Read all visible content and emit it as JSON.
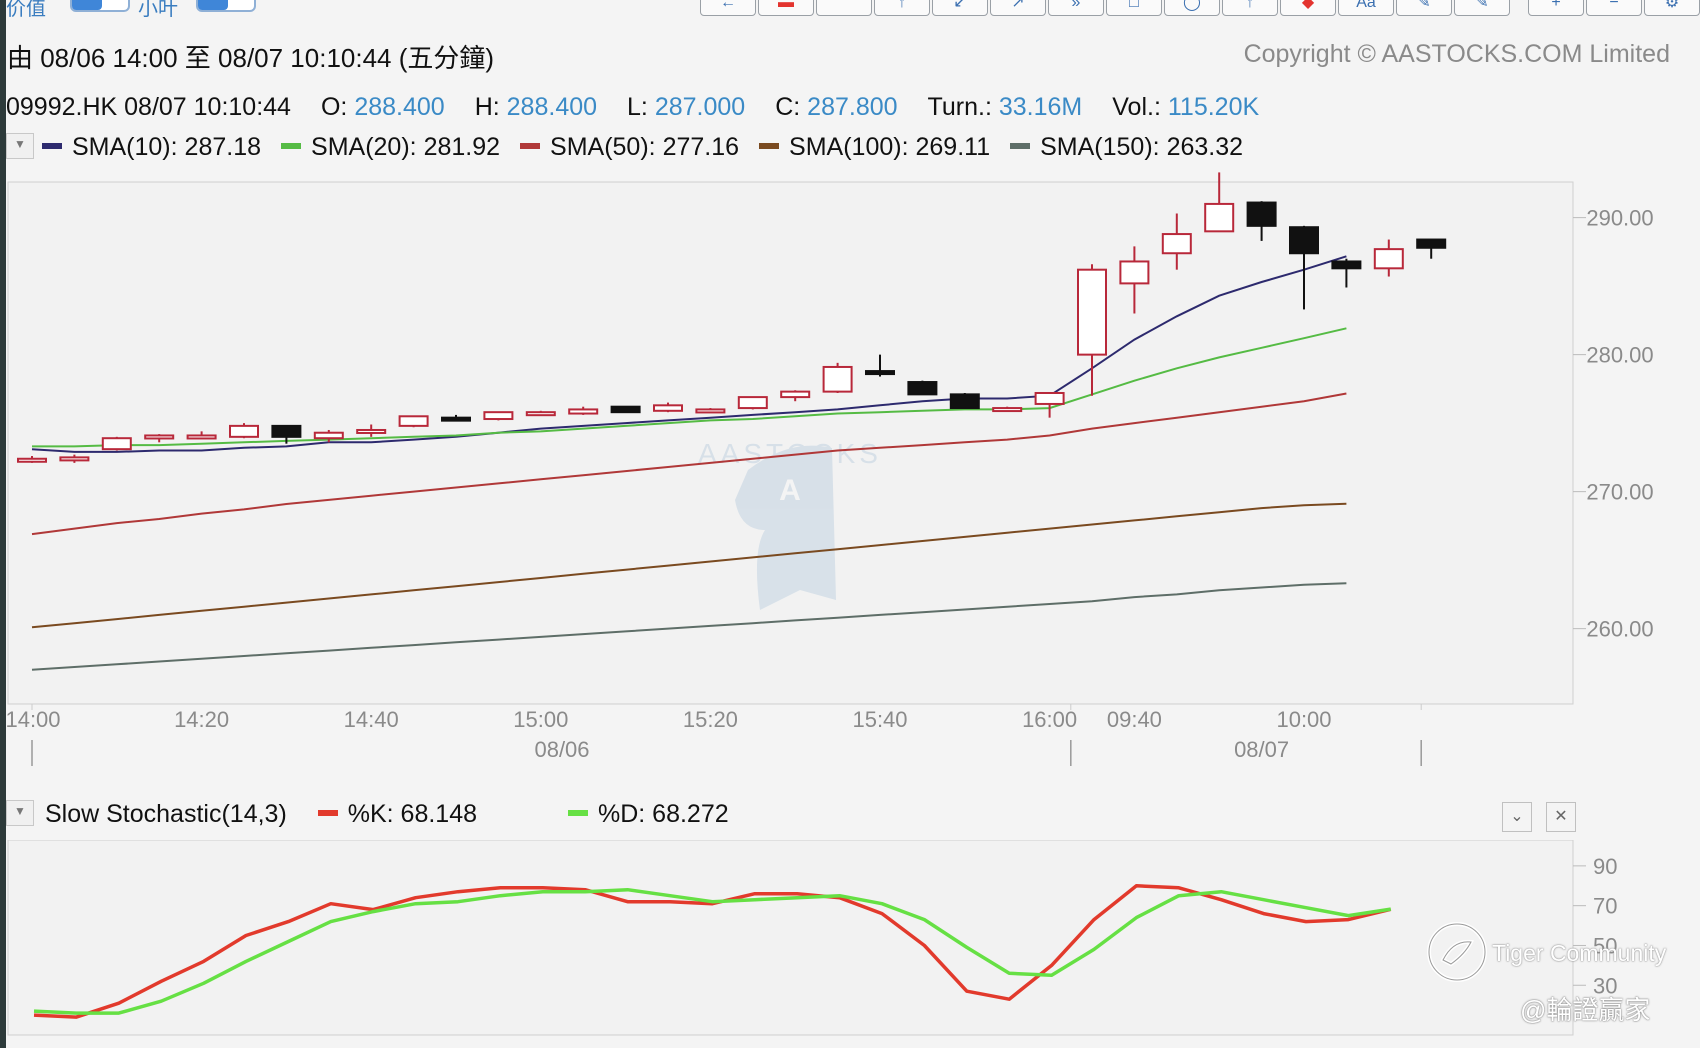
{
  "toolbar": {
    "left_labels": [
      "价值",
      "小叶"
    ],
    "buttons": [
      {
        "icon": "arrow-left-icon",
        "glyph": "←",
        "accent": false
      },
      {
        "icon": "red-bar-icon",
        "glyph": "▬",
        "accent": true
      },
      {
        "icon": "blank-icon",
        "glyph": "",
        "accent": false
      },
      {
        "icon": "arrow-up-icon",
        "glyph": "↑",
        "accent": false
      },
      {
        "icon": "arrow-down-left-icon",
        "glyph": "↙",
        "accent": false
      },
      {
        "icon": "arrow-right-up-icon",
        "glyph": "↗",
        "accent": false
      },
      {
        "icon": "double-arrow-icon",
        "glyph": "»",
        "accent": false
      },
      {
        "icon": "square-icon",
        "glyph": "□",
        "accent": false
      },
      {
        "icon": "circle-icon",
        "glyph": "◯",
        "accent": false
      },
      {
        "icon": "arrow-icon",
        "glyph": "↑",
        "accent": false
      },
      {
        "icon": "red-diamond-icon",
        "glyph": "◆",
        "accent": true
      },
      {
        "icon": "text-tool-icon",
        "glyph": "Aa",
        "accent": false
      },
      {
        "icon": "pen-icon",
        "glyph": "✎",
        "accent": false
      },
      {
        "icon": "pencil-icon",
        "glyph": "✎",
        "accent": false
      }
    ],
    "right_buttons": [
      {
        "icon": "zoom-in-icon",
        "glyph": "+"
      },
      {
        "icon": "zoom-out-icon",
        "glyph": "−"
      },
      {
        "icon": "settings-icon",
        "glyph": "⚙"
      }
    ]
  },
  "header": {
    "title": "由 08/06 14:00 至 08/07 10:10:44 (五分鐘)",
    "copyright": "Copyright © AASTOCKS.COM Limited"
  },
  "quote": {
    "symbol_time": "09992.HK 08/07 10:10:44",
    "o_label": "O:",
    "o_value": "288.400",
    "h_label": "H:",
    "h_value": "288.400",
    "l_label": "L:",
    "l_value": "287.000",
    "c_label": "C:",
    "c_value": "287.800",
    "turn_label": "Turn.:",
    "turn_value": "33.16M",
    "vol_label": "Vol.:",
    "vol_value": "115.20K"
  },
  "watermark": "AASTOCKS",
  "colors": {
    "up_candle": "#b8283a",
    "down_candle": "#111111",
    "sma10": "#2d2a6e",
    "sma20": "#55bb44",
    "sma50": "#b03838",
    "sma100": "#7a4a20",
    "sma150": "#5e6e68",
    "k_line": "#e23a2c",
    "d_line": "#66e044",
    "axis_text": "#8a8a8a",
    "value_blue": "#3a8ac6"
  },
  "chart_data": [
    {
      "type": "candlestick",
      "ylim": [
        254.5,
        292.6
      ],
      "y_ticks": [
        260,
        270,
        280,
        290
      ],
      "y_tick_labels": [
        "260.00",
        "270.00",
        "280.00",
        "290.00"
      ],
      "x_ticks": [
        {
          "index": 0,
          "label": "14:00"
        },
        {
          "index": 4,
          "label": "14:20"
        },
        {
          "index": 8,
          "label": "14:40"
        },
        {
          "index": 12,
          "label": "15:00"
        },
        {
          "index": 16,
          "label": "15:20"
        },
        {
          "index": 20,
          "label": "15:40"
        },
        {
          "index": 24,
          "label": "16:00"
        },
        {
          "index": 26,
          "label": "09:40"
        },
        {
          "index": 30,
          "label": "10:00"
        }
      ],
      "date_labels": [
        {
          "index": 12.5,
          "label": "08/06"
        },
        {
          "index": 29,
          "label": "08/07"
        }
      ],
      "session_dividers": [
        0,
        25,
        33
      ],
      "candles": [
        {
          "o": 272.2,
          "h": 272.6,
          "l": 272.1,
          "c": 272.4
        },
        {
          "o": 272.4,
          "h": 272.7,
          "l": 272.1,
          "c": 272.5
        },
        {
          "o": 273.1,
          "h": 274.0,
          "l": 273.0,
          "c": 273.9
        },
        {
          "o": 273.9,
          "h": 274.2,
          "l": 273.6,
          "c": 274.1
        },
        {
          "o": 274.0,
          "h": 274.4,
          "l": 273.9,
          "c": 274.1
        },
        {
          "o": 274.0,
          "h": 275.0,
          "l": 273.9,
          "c": 274.8
        },
        {
          "o": 274.8,
          "h": 274.8,
          "l": 273.5,
          "c": 274.0
        },
        {
          "o": 273.9,
          "h": 274.5,
          "l": 273.6,
          "c": 274.3
        },
        {
          "o": 274.5,
          "h": 274.9,
          "l": 274.0,
          "c": 274.5
        },
        {
          "o": 274.8,
          "h": 275.5,
          "l": 274.7,
          "c": 275.5
        },
        {
          "o": 275.4,
          "h": 275.6,
          "l": 275.2,
          "c": 275.2
        },
        {
          "o": 275.3,
          "h": 275.8,
          "l": 275.2,
          "c": 275.8
        },
        {
          "o": 275.7,
          "h": 275.9,
          "l": 275.6,
          "c": 275.8
        },
        {
          "o": 275.7,
          "h": 276.2,
          "l": 275.6,
          "c": 276.0
        },
        {
          "o": 276.2,
          "h": 276.2,
          "l": 275.8,
          "c": 275.8
        },
        {
          "o": 275.9,
          "h": 276.5,
          "l": 275.8,
          "c": 276.3
        },
        {
          "o": 276.0,
          "h": 276.1,
          "l": 275.9,
          "c": 276.0
        },
        {
          "o": 276.1,
          "h": 276.9,
          "l": 276.0,
          "c": 276.9
        },
        {
          "o": 276.9,
          "h": 277.4,
          "l": 276.6,
          "c": 277.3
        },
        {
          "o": 277.3,
          "h": 279.4,
          "l": 277.2,
          "c": 279.1
        },
        {
          "o": 278.8,
          "h": 280.0,
          "l": 278.4,
          "c": 278.7
        },
        {
          "o": 278.0,
          "h": 278.1,
          "l": 277.1,
          "c": 277.1
        },
        {
          "o": 277.1,
          "h": 277.2,
          "l": 276.1,
          "c": 276.1
        },
        {
          "o": 276.1,
          "h": 276.2,
          "l": 275.9,
          "c": 276.1
        },
        {
          "o": 276.4,
          "h": 277.1,
          "l": 275.4,
          "c": 277.2
        },
        {
          "o": 280.0,
          "h": 286.6,
          "l": 277.0,
          "c": 286.2
        },
        {
          "o": 285.2,
          "h": 287.9,
          "l": 283.0,
          "c": 286.8
        },
        {
          "o": 287.4,
          "h": 290.3,
          "l": 286.2,
          "c": 288.8
        },
        {
          "o": 289.0,
          "h": 293.3,
          "l": 289.0,
          "c": 291.0
        },
        {
          "o": 291.1,
          "h": 291.2,
          "l": 288.3,
          "c": 289.4
        },
        {
          "o": 289.3,
          "h": 289.4,
          "l": 283.3,
          "c": 287.4
        },
        {
          "o": 286.8,
          "h": 287.0,
          "l": 284.9,
          "c": 286.3
        },
        {
          "o": 286.3,
          "h": 288.4,
          "l": 285.7,
          "c": 287.7
        },
        {
          "o": 288.4,
          "h": 288.4,
          "l": 287.0,
          "c": 287.8
        }
      ],
      "series": [
        {
          "name": "SMA(10)",
          "value_label": "287.18",
          "color_key": "sma10",
          "values": [
            273.1,
            272.9,
            272.9,
            273.0,
            273.0,
            273.2,
            273.3,
            273.6,
            273.6,
            273.8,
            274.0,
            274.3,
            274.6,
            274.8,
            275.0,
            275.2,
            275.4,
            275.6,
            275.8,
            276.0,
            276.3,
            276.6,
            276.8,
            276.8,
            277.0,
            279.0,
            281.1,
            282.8,
            284.3,
            285.3,
            286.2,
            287.18
          ]
        },
        {
          "name": "SMA(20)",
          "value_label": "281.92",
          "color_key": "sma20",
          "values": [
            273.3,
            273.3,
            273.4,
            273.4,
            273.5,
            273.6,
            273.7,
            273.8,
            273.9,
            274.0,
            274.1,
            274.3,
            274.4,
            274.6,
            274.8,
            275.0,
            275.2,
            275.3,
            275.5,
            275.7,
            275.8,
            275.9,
            276.0,
            276.0,
            276.1,
            277.1,
            278.1,
            279.0,
            279.8,
            280.5,
            281.2,
            281.92
          ]
        },
        {
          "name": "SMA(50)",
          "value_label": "277.16",
          "color_key": "sma50",
          "values": [
            266.9,
            267.3,
            267.7,
            268.0,
            268.4,
            268.7,
            269.1,
            269.4,
            269.7,
            270.0,
            270.3,
            270.6,
            270.9,
            271.2,
            271.5,
            271.8,
            272.1,
            272.4,
            272.7,
            273.0,
            273.2,
            273.4,
            273.6,
            273.8,
            274.1,
            274.6,
            275.0,
            275.4,
            275.8,
            276.2,
            276.6,
            277.16
          ]
        },
        {
          "name": "SMA(100)",
          "value_label": "269.11",
          "color_key": "sma100",
          "values": [
            260.1,
            260.4,
            260.7,
            261.0,
            261.3,
            261.6,
            261.9,
            262.2,
            262.5,
            262.8,
            263.1,
            263.4,
            263.7,
            264.0,
            264.3,
            264.6,
            264.9,
            265.2,
            265.5,
            265.8,
            266.1,
            266.4,
            266.7,
            267.0,
            267.3,
            267.6,
            267.9,
            268.2,
            268.5,
            268.8,
            269.0,
            269.11
          ]
        },
        {
          "name": "SMA(150)",
          "value_label": "263.32",
          "color_key": "sma150",
          "values": [
            257.0,
            257.2,
            257.4,
            257.6,
            257.8,
            258.0,
            258.2,
            258.4,
            258.6,
            258.8,
            259.0,
            259.2,
            259.4,
            259.6,
            259.8,
            260.0,
            260.2,
            260.4,
            260.6,
            260.8,
            261.0,
            261.2,
            261.4,
            261.6,
            261.8,
            262.0,
            262.3,
            262.5,
            262.8,
            263.0,
            263.2,
            263.32
          ]
        }
      ],
      "sma_x_start": 0.3
    },
    {
      "type": "line",
      "title": "Slow Stochastic(14,3)",
      "ylim": [
        5,
        103
      ],
      "y_ticks": [
        30,
        50,
        70,
        90
      ],
      "y_tick_labels": [
        "30",
        "50",
        "70",
        "90"
      ],
      "series": [
        {
          "name": "%K",
          "value_label": "68.148",
          "color_key": "k_line",
          "values": [
            15,
            14,
            21,
            32,
            42,
            55,
            62,
            71,
            68,
            74,
            77,
            79,
            79,
            78,
            72,
            72,
            71,
            76,
            76,
            74,
            66,
            50,
            27,
            23,
            40,
            63,
            80,
            79,
            73,
            66,
            62,
            63,
            68.148
          ]
        },
        {
          "name": "%D",
          "value_label": "68.272",
          "color_key": "d_line",
          "values": [
            17,
            16,
            16,
            22,
            31,
            42,
            52,
            62,
            67,
            71,
            72,
            75,
            77,
            77,
            78,
            75,
            72,
            73,
            74,
            75,
            71,
            63,
            49,
            36,
            35,
            48,
            64,
            75,
            77,
            73,
            69,
            65,
            68.272
          ]
        }
      ]
    }
  ],
  "stoch_controls": {
    "collapse_glyph": "⌄",
    "close_glyph": "✕"
  },
  "watermarks": {
    "tiger": "Tiger Community",
    "handle": "@輪證贏家"
  }
}
